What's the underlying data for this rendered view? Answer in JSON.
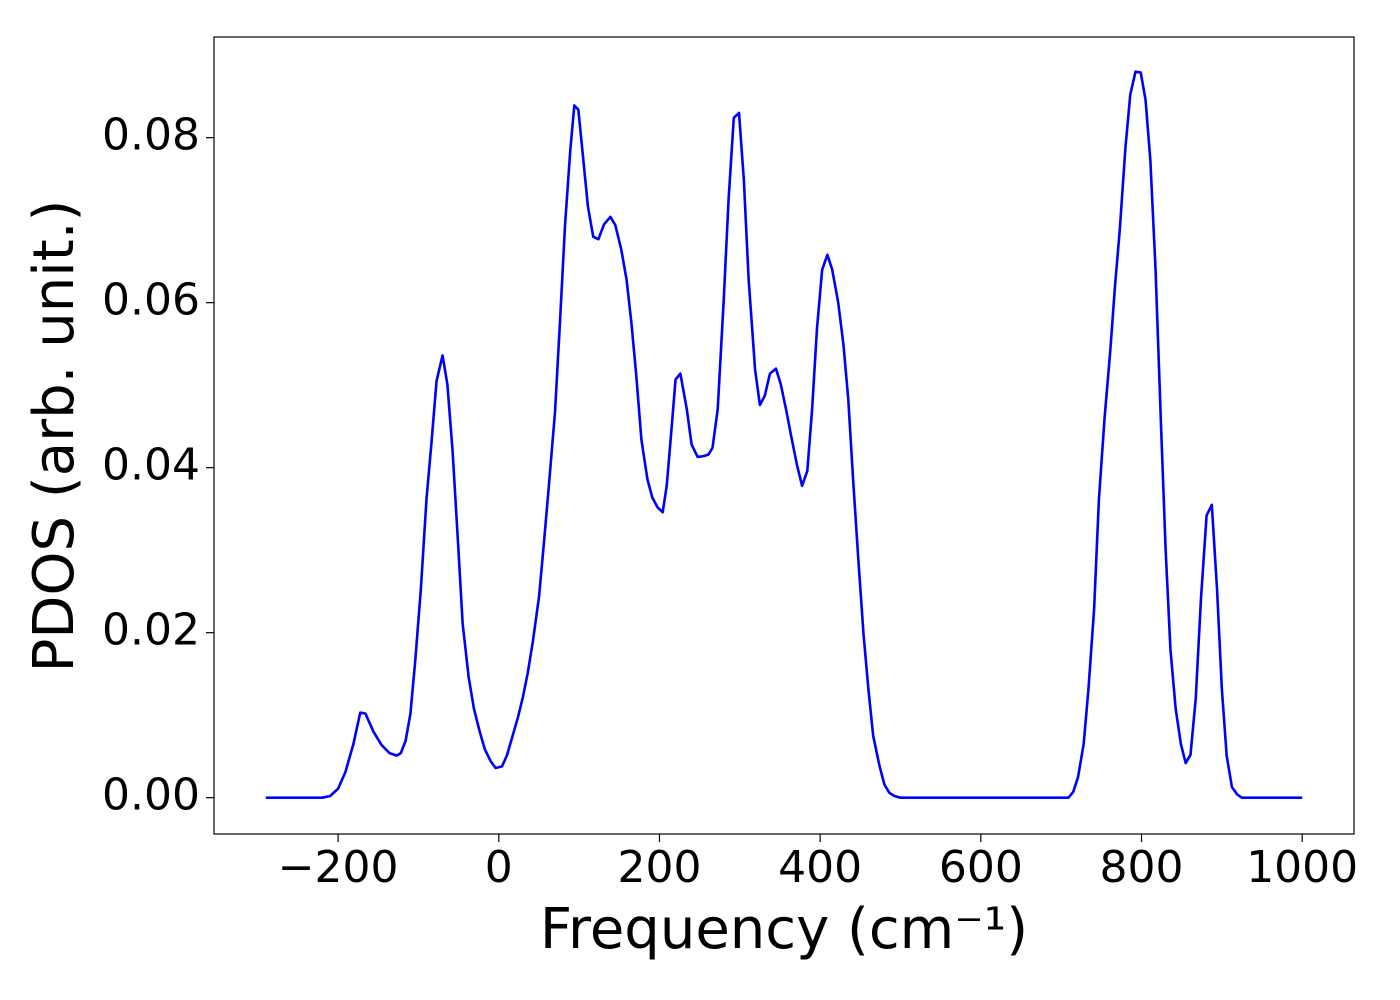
{
  "chart_data": {
    "type": "line",
    "x_label": "Frequency (cm⁻¹)",
    "y_label": "PDOS (arb. unit.)",
    "x": [
      -290,
      -220,
      -210,
      -200,
      -191,
      -181,
      -172.5,
      -166,
      -156,
      -146,
      -136,
      -127,
      -122,
      -116,
      -110,
      -104,
      -97,
      -90,
      -84,
      -77.5,
      -70,
      -64,
      -57.5,
      -51,
      -45,
      -37.5,
      -31,
      -24,
      -17.5,
      -10,
      -4,
      4,
      10,
      16,
      24,
      30,
      36,
      42.5,
      50,
      56,
      62.5,
      70,
      76,
      82.5,
      89,
      94,
      99,
      104,
      111,
      117.5,
      124,
      131,
      139,
      145,
      152.5,
      159,
      165,
      171,
      177.5,
      185,
      191,
      197.5,
      204,
      209,
      215,
      220,
      226,
      234,
      240,
      247.5,
      255,
      261,
      266,
      272.5,
      280,
      286,
      292.5,
      299,
      305,
      311,
      319,
      325,
      331,
      337.5,
      345,
      351,
      357.5,
      364,
      371,
      377.5,
      384,
      390,
      396,
      402.5,
      409,
      415,
      422.5,
      429,
      435,
      441,
      447.5,
      454,
      460,
      466,
      474,
      480,
      486,
      492.5,
      500,
      709,
      715,
      721,
      728,
      734,
      741,
      747,
      754,
      761,
      767,
      773,
      780,
      786,
      792.5,
      799,
      805,
      811,
      817.5,
      824,
      830,
      836,
      842.5,
      849,
      855,
      861,
      867.5,
      874,
      881,
      887.5,
      894,
      900,
      906,
      912.5,
      919,
      925,
      1000
    ],
    "series": [
      {
        "name": "PDOS",
        "color": "#0000ff",
        "values": [
          0,
          0,
          0.0002,
          0.0011,
          0.0031,
          0.0065,
          0.0103,
          0.0102,
          0.008,
          0.0064,
          0.0054,
          0.0051,
          0.0054,
          0.0069,
          0.0102,
          0.0166,
          0.0253,
          0.0362,
          0.0428,
          0.0505,
          0.0536,
          0.0501,
          0.042,
          0.0313,
          0.0211,
          0.0146,
          0.0108,
          0.0081,
          0.0059,
          0.0044,
          0.0036,
          0.0038,
          0.0051,
          0.0071,
          0.0098,
          0.0122,
          0.0151,
          0.019,
          0.0243,
          0.0307,
          0.038,
          0.0468,
          0.0574,
          0.0695,
          0.0785,
          0.0839,
          0.0834,
          0.0785,
          0.0716,
          0.068,
          0.0677,
          0.0695,
          0.0704,
          0.0694,
          0.0664,
          0.0628,
          0.0576,
          0.0513,
          0.0434,
          0.0386,
          0.0364,
          0.0352,
          0.0346,
          0.0378,
          0.0447,
          0.0507,
          0.0514,
          0.0471,
          0.0428,
          0.0413,
          0.0414,
          0.0416,
          0.0424,
          0.0471,
          0.0604,
          0.0725,
          0.0824,
          0.083,
          0.0749,
          0.0628,
          0.0519,
          0.0476,
          0.0487,
          0.0514,
          0.052,
          0.0501,
          0.0471,
          0.0438,
          0.0404,
          0.0378,
          0.0396,
          0.0471,
          0.0568,
          0.064,
          0.0658,
          0.064,
          0.06,
          0.0549,
          0.0483,
          0.0386,
          0.0289,
          0.0198,
          0.0132,
          0.0075,
          0.0038,
          0.0016,
          0.0006,
          0.0002,
          0,
          0,
          0.0007,
          0.0025,
          0.0065,
          0.0132,
          0.0229,
          0.0362,
          0.046,
          0.054,
          0.062,
          0.0689,
          0.0788,
          0.0852,
          0.088,
          0.0879,
          0.0846,
          0.0773,
          0.064,
          0.0459,
          0.0301,
          0.018,
          0.0108,
          0.0065,
          0.0042,
          0.0052,
          0.012,
          0.0241,
          0.0342,
          0.0355,
          0.0253,
          0.0132,
          0.0051,
          0.0013,
          0.0004,
          0,
          0
        ]
      }
    ],
    "xlim": [
      -354.5,
      1064.5
    ],
    "ylim": [
      -0.0044,
      0.0922
    ],
    "xticks": [
      {
        "value": -200,
        "label": "−200"
      },
      0,
      200,
      400,
      600,
      800,
      1000
    ],
    "yticks": [
      {
        "value": 0,
        "label": "0.00"
      },
      {
        "value": 0.02,
        "label": "0.02"
      },
      {
        "value": 0.04,
        "label": "0.04"
      },
      {
        "value": 0.06,
        "label": "0.06"
      },
      {
        "value": 0.08,
        "label": "0.08"
      }
    ],
    "grid": false
  }
}
